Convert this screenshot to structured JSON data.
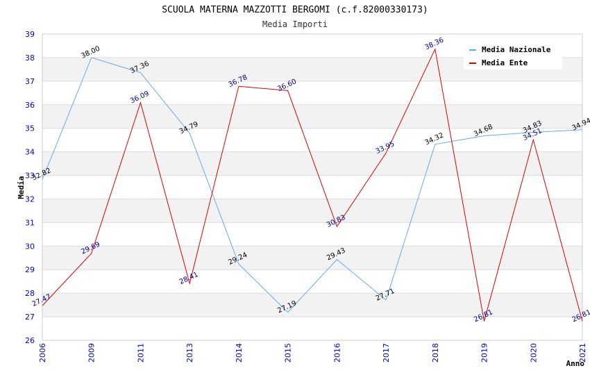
{
  "chart_data": {
    "type": "line",
    "title": "SCUOLA MATERNA MAZZOTTI BERGOMI (c.f.82000330173)",
    "subtitle": "Media Importi",
    "xlabel": "Anno",
    "ylabel": "Media",
    "ylim": [
      26,
      39
    ],
    "yticks": [
      "26",
      "27",
      "28",
      "29",
      "30",
      "31",
      "32",
      "33",
      "34",
      "35",
      "36",
      "37",
      "38",
      "39"
    ],
    "categories": [
      "2006",
      "2009",
      "2011",
      "2013",
      "2014",
      "2015",
      "2016",
      "2017",
      "2018",
      "2019",
      "2020",
      "2021"
    ],
    "series": [
      {
        "name": "Media Nazionale",
        "color": "#66aaee",
        "values": [
          32.82,
          38.0,
          37.36,
          34.79,
          29.24,
          27.19,
          29.43,
          27.71,
          34.32,
          34.68,
          34.83,
          34.94
        ],
        "labels": [
          "32.82",
          "38.00",
          "37.36",
          "34.79",
          "29.24",
          "27.19",
          "29.43",
          "27.71",
          "34.32",
          "34.68",
          "34.83",
          "34.94"
        ]
      },
      {
        "name": "Media Ente",
        "color": "#dd0000",
        "values": [
          27.47,
          29.69,
          36.09,
          28.41,
          36.78,
          36.6,
          30.83,
          33.95,
          38.36,
          26.81,
          34.51,
          26.81
        ],
        "labels": [
          "27.47",
          "29.69",
          "36.09",
          "28.41",
          "36.78",
          "36.60",
          "30.83",
          "33.95",
          "38.36",
          "26.81",
          "34.51",
          "26.81"
        ]
      }
    ],
    "legend": "top-right",
    "grid": true
  }
}
